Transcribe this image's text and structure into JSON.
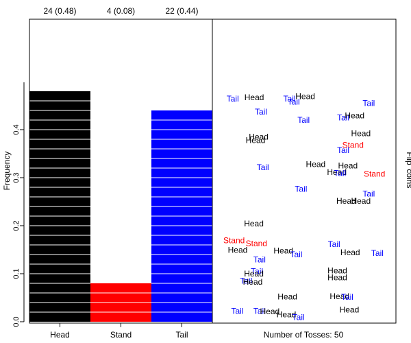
{
  "chart_data": {
    "type": "bar",
    "title": "",
    "xlabel": "",
    "ylabel": "Frequency",
    "right_axis_label": "Flip 'coins'",
    "panel_label": "Number of Tosses: 50",
    "ylim": [
      0,
      0.5
    ],
    "yticks": [
      0.0,
      0.1,
      0.2,
      0.3,
      0.4
    ],
    "ytick_labels": [
      "0.0",
      "0.1",
      "0.2",
      "0.3",
      "0.4"
    ],
    "categories": [
      "Head",
      "Stand",
      "Tail"
    ],
    "values": [
      0.48,
      0.08,
      0.44
    ],
    "counts_labels": [
      "24 (0.48)",
      "4 (0.08)",
      "22 (0.44)"
    ],
    "colors": {
      "Head": "#000000",
      "Stand": "#ff0000",
      "Tail": "#0000ff"
    },
    "bar_segment_step": 0.02,
    "grid": false,
    "legend": "none",
    "scatter_labels": [
      {
        "label": "Tail",
        "x": 0.111,
        "y": 0.463
      },
      {
        "label": "Head",
        "x": 0.228,
        "y": 0.466
      },
      {
        "label": "Tail",
        "x": 0.42,
        "y": 0.463
      },
      {
        "label": "Tail",
        "x": 0.443,
        "y": 0.457
      },
      {
        "label": "Head",
        "x": 0.506,
        "y": 0.468
      },
      {
        "label": "Tail",
        "x": 0.852,
        "y": 0.454
      },
      {
        "label": "Tail",
        "x": 0.265,
        "y": 0.436
      },
      {
        "label": "Tail",
        "x": 0.497,
        "y": 0.419
      },
      {
        "label": "Tail",
        "x": 0.713,
        "y": 0.424
      },
      {
        "label": "Head",
        "x": 0.775,
        "y": 0.428
      },
      {
        "label": "Head",
        "x": 0.809,
        "y": 0.391
      },
      {
        "label": "Head",
        "x": 0.252,
        "y": 0.384
      },
      {
        "label": "Head",
        "x": 0.235,
        "y": 0.377
      },
      {
        "label": "Stand",
        "x": 0.766,
        "y": 0.367
      },
      {
        "label": "Tail",
        "x": 0.713,
        "y": 0.356
      },
      {
        "label": "Head",
        "x": 0.563,
        "y": 0.327
      },
      {
        "label": "Head",
        "x": 0.738,
        "y": 0.324
      },
      {
        "label": "Tail",
        "x": 0.275,
        "y": 0.32
      },
      {
        "label": "Head",
        "x": 0.678,
        "y": 0.31
      },
      {
        "label": "Tail",
        "x": 0.695,
        "y": 0.308
      },
      {
        "label": "Stand",
        "x": 0.883,
        "y": 0.307
      },
      {
        "label": "Tail",
        "x": 0.483,
        "y": 0.275
      },
      {
        "label": "Tail",
        "x": 0.852,
        "y": 0.265
      },
      {
        "label": "Head",
        "x": 0.729,
        "y": 0.25
      },
      {
        "label": "Head",
        "x": 0.809,
        "y": 0.25
      },
      {
        "label": "Head",
        "x": 0.226,
        "y": 0.203
      },
      {
        "label": "Stand",
        "x": 0.118,
        "y": 0.168
      },
      {
        "label": "Stand",
        "x": 0.24,
        "y": 0.162
      },
      {
        "label": "Tail",
        "x": 0.663,
        "y": 0.16
      },
      {
        "label": "Head",
        "x": 0.138,
        "y": 0.148
      },
      {
        "label": "Head",
        "x": 0.387,
        "y": 0.147
      },
      {
        "label": "Tail",
        "x": 0.457,
        "y": 0.139
      },
      {
        "label": "Head",
        "x": 0.751,
        "y": 0.143
      },
      {
        "label": "Tail",
        "x": 0.899,
        "y": 0.142
      },
      {
        "label": "Tail",
        "x": 0.257,
        "y": 0.128
      },
      {
        "label": "Tail",
        "x": 0.243,
        "y": 0.104
      },
      {
        "label": "Head",
        "x": 0.226,
        "y": 0.099
      },
      {
        "label": "Head",
        "x": 0.681,
        "y": 0.105
      },
      {
        "label": "Head",
        "x": 0.681,
        "y": 0.091
      },
      {
        "label": "Tail",
        "x": 0.184,
        "y": 0.084
      },
      {
        "label": "Head",
        "x": 0.22,
        "y": 0.082
      },
      {
        "label": "Head",
        "x": 0.409,
        "y": 0.051
      },
      {
        "label": "Head",
        "x": 0.693,
        "y": 0.052
      },
      {
        "label": "Tail",
        "x": 0.735,
        "y": 0.05
      },
      {
        "label": "Tail",
        "x": 0.136,
        "y": 0.021
      },
      {
        "label": "Tail",
        "x": 0.257,
        "y": 0.021
      },
      {
        "label": "Head",
        "x": 0.313,
        "y": 0.02
      },
      {
        "label": "Head",
        "x": 0.403,
        "y": 0.014
      },
      {
        "label": "Tail",
        "x": 0.469,
        "y": 0.008
      },
      {
        "label": "Head",
        "x": 0.746,
        "y": 0.024
      }
    ]
  }
}
